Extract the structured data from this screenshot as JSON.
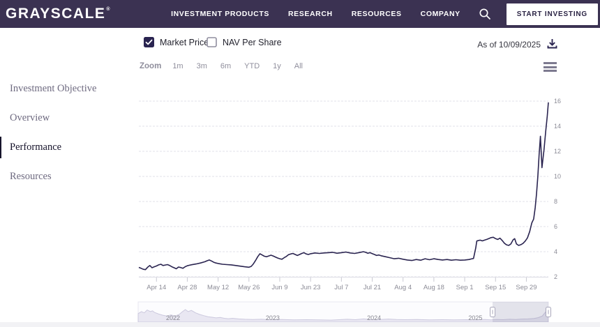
{
  "header": {
    "brand": "GRAYSCALE",
    "reg_mark": "®",
    "nav_items": [
      "INVESTMENT PRODUCTS",
      "RESEARCH",
      "RESOURCES",
      "COMPANY"
    ],
    "cta_label": "START INVESTING",
    "bg_color": "#3b3252"
  },
  "controls": {
    "market_price": {
      "label": "Market Price",
      "checked": true
    },
    "nav_per_share": {
      "label": "NAV Per Share",
      "checked": false
    },
    "as_of": "As of 10/09/2025"
  },
  "toolbar": {
    "zoom_label": "Zoom",
    "ranges": [
      "1m",
      "3m",
      "6m",
      "YTD",
      "1y",
      "All"
    ]
  },
  "sidebar": {
    "items": [
      {
        "label": "Investment Objective",
        "active": false
      },
      {
        "label": "Overview",
        "active": false
      },
      {
        "label": "Performance",
        "active": true
      },
      {
        "label": "Resources",
        "active": false
      }
    ]
  },
  "chart_data": {
    "type": "line",
    "title": "Market Price",
    "series_name": "Market Price",
    "line_color": "#2a2450",
    "grid_color": "#e2e1ea",
    "axis_text_color": "#8b8b96",
    "ylim": [
      2,
      16
    ],
    "y_ticks": [
      2,
      4,
      6,
      8,
      10,
      12,
      14,
      16
    ],
    "x_day_max": 186,
    "x_ticks": [
      {
        "label": "Apr 14",
        "day": 8
      },
      {
        "label": "Apr 28",
        "day": 22
      },
      {
        "label": "May 12",
        "day": 36
      },
      {
        "label": "May 26",
        "day": 50
      },
      {
        "label": "Jun 9",
        "day": 64
      },
      {
        "label": "Jun 23",
        "day": 78
      },
      {
        "label": "Jul 7",
        "day": 92
      },
      {
        "label": "Jul 21",
        "day": 106
      },
      {
        "label": "Aug 4",
        "day": 120
      },
      {
        "label": "Aug 18",
        "day": 134
      },
      {
        "label": "Sep 1",
        "day": 148
      },
      {
        "label": "Sep 15",
        "day": 162
      },
      {
        "label": "Sep 29",
        "day": 176
      }
    ],
    "points": [
      [
        0,
        2.75
      ],
      [
        1,
        2.68
      ],
      [
        2,
        2.6
      ],
      [
        3,
        2.57
      ],
      [
        4,
        2.76
      ],
      [
        5,
        2.9
      ],
      [
        6,
        2.72
      ],
      [
        7,
        2.8
      ],
      [
        8,
        2.86
      ],
      [
        9,
        2.95
      ],
      [
        10,
        3.0
      ],
      [
        11,
        2.9
      ],
      [
        12,
        2.94
      ],
      [
        13,
        2.97
      ],
      [
        14,
        2.9
      ],
      [
        15,
        2.8
      ],
      [
        16,
        2.72
      ],
      [
        17,
        2.64
      ],
      [
        18,
        2.78
      ],
      [
        19,
        2.74
      ],
      [
        20,
        2.68
      ],
      [
        21,
        2.8
      ],
      [
        22,
        2.88
      ],
      [
        23,
        2.92
      ],
      [
        24,
        2.96
      ],
      [
        26,
        3.02
      ],
      [
        28,
        3.1
      ],
      [
        30,
        3.2
      ],
      [
        31,
        3.28
      ],
      [
        32,
        3.34
      ],
      [
        33,
        3.26
      ],
      [
        34,
        3.16
      ],
      [
        35,
        3.1
      ],
      [
        36,
        3.06
      ],
      [
        38,
        3.0
      ],
      [
        40,
        2.97
      ],
      [
        42,
        2.95
      ],
      [
        44,
        2.9
      ],
      [
        46,
        2.85
      ],
      [
        48,
        2.8
      ],
      [
        50,
        2.76
      ],
      [
        51,
        2.83
      ],
      [
        52,
        3.02
      ],
      [
        53,
        3.3
      ],
      [
        54,
        3.6
      ],
      [
        55,
        3.84
      ],
      [
        56,
        3.74
      ],
      [
        57,
        3.64
      ],
      [
        58,
        3.6
      ],
      [
        59,
        3.66
      ],
      [
        60,
        3.72
      ],
      [
        61,
        3.66
      ],
      [
        62,
        3.58
      ],
      [
        63,
        3.5
      ],
      [
        64,
        3.44
      ],
      [
        65,
        3.4
      ],
      [
        66,
        3.52
      ],
      [
        67,
        3.62
      ],
      [
        68,
        3.76
      ],
      [
        69,
        3.82
      ],
      [
        70,
        3.86
      ],
      [
        71,
        3.78
      ],
      [
        72,
        3.7
      ],
      [
        73,
        3.78
      ],
      [
        74,
        3.86
      ],
      [
        75,
        3.92
      ],
      [
        76,
        3.82
      ],
      [
        77,
        3.78
      ],
      [
        78,
        3.84
      ],
      [
        80,
        3.9
      ],
      [
        82,
        3.86
      ],
      [
        84,
        3.9
      ],
      [
        86,
        3.92
      ],
      [
        88,
        3.95
      ],
      [
        90,
        3.88
      ],
      [
        92,
        3.92
      ],
      [
        94,
        3.97
      ],
      [
        96,
        3.9
      ],
      [
        98,
        3.86
      ],
      [
        100,
        3.93
      ],
      [
        102,
        4.0
      ],
      [
        103,
        3.95
      ],
      [
        104,
        3.88
      ],
      [
        105,
        3.92
      ],
      [
        106,
        3.85
      ],
      [
        107,
        3.78
      ],
      [
        108,
        3.7
      ],
      [
        109,
        3.74
      ],
      [
        110,
        3.68
      ],
      [
        112,
        3.6
      ],
      [
        114,
        3.52
      ],
      [
        116,
        3.44
      ],
      [
        118,
        3.48
      ],
      [
        120,
        3.4
      ],
      [
        122,
        3.34
      ],
      [
        124,
        3.3
      ],
      [
        126,
        3.38
      ],
      [
        128,
        3.32
      ],
      [
        130,
        3.44
      ],
      [
        132,
        3.36
      ],
      [
        134,
        3.44
      ],
      [
        136,
        3.38
      ],
      [
        138,
        3.34
      ],
      [
        140,
        3.38
      ],
      [
        142,
        3.32
      ],
      [
        144,
        3.36
      ],
      [
        146,
        3.32
      ],
      [
        148,
        3.34
      ],
      [
        150,
        3.38
      ],
      [
        151,
        3.42
      ],
      [
        152,
        3.46
      ],
      [
        153,
        4.3
      ],
      [
        153.5,
        4.85
      ],
      [
        154,
        4.88
      ],
      [
        155,
        4.92
      ],
      [
        156,
        4.86
      ],
      [
        157,
        4.92
      ],
      [
        158,
        4.98
      ],
      [
        159,
        5.05
      ],
      [
        160,
        5.12
      ],
      [
        161,
        5.15
      ],
      [
        162,
        5.04
      ],
      [
        163,
        4.98
      ],
      [
        164,
        5.08
      ],
      [
        165,
        4.9
      ],
      [
        166,
        4.68
      ],
      [
        167,
        4.55
      ],
      [
        168,
        4.5
      ],
      [
        169,
        4.62
      ],
      [
        170,
        4.95
      ],
      [
        170.7,
        5.04
      ],
      [
        171.5,
        4.62
      ],
      [
        172.5,
        4.5
      ],
      [
        173.5,
        4.56
      ],
      [
        174.5,
        4.66
      ],
      [
        175.5,
        4.85
      ],
      [
        176.5,
        5.1
      ],
      [
        177.5,
        5.6
      ],
      [
        178.5,
        6.3
      ],
      [
        179.3,
        6.6
      ],
      [
        180,
        7.5
      ],
      [
        180.6,
        8.6
      ],
      [
        181.2,
        10.0
      ],
      [
        181.8,
        11.7
      ],
      [
        182.4,
        13.2
      ],
      [
        183.1,
        10.7
      ],
      [
        184,
        12.1
      ],
      [
        184.8,
        13.6
      ],
      [
        185.5,
        14.8
      ],
      [
        186,
        15.9
      ]
    ],
    "navigator": {
      "area_fill": "#e9e7f2",
      "area_line": "#ccc9de",
      "year_labels": [
        {
          "label": "2022",
          "f": 0.085
        },
        {
          "label": "2023",
          "f": 0.328
        },
        {
          "label": "2024",
          "f": 0.575
        },
        {
          "label": "2025",
          "f": 0.822
        }
      ],
      "selection": {
        "from": 0.864,
        "to": 1.0
      },
      "points": [
        [
          0,
          0.42
        ],
        [
          0.008,
          0.52
        ],
        [
          0.015,
          0.46
        ],
        [
          0.022,
          0.6
        ],
        [
          0.03,
          0.52
        ],
        [
          0.035,
          0.56
        ],
        [
          0.04,
          0.48
        ],
        [
          0.05,
          0.4
        ],
        [
          0.06,
          0.34
        ],
        [
          0.07,
          0.3
        ],
        [
          0.08,
          0.36
        ],
        [
          0.09,
          0.3
        ],
        [
          0.1,
          0.38
        ],
        [
          0.107,
          0.5
        ],
        [
          0.115,
          0.62
        ],
        [
          0.122,
          0.52
        ],
        [
          0.13,
          0.58
        ],
        [
          0.14,
          0.46
        ],
        [
          0.15,
          0.38
        ],
        [
          0.16,
          0.32
        ],
        [
          0.17,
          0.27
        ],
        [
          0.18,
          0.24
        ],
        [
          0.19,
          0.21
        ],
        [
          0.2,
          0.23
        ],
        [
          0.21,
          0.19
        ],
        [
          0.22,
          0.17
        ],
        [
          0.23,
          0.19
        ],
        [
          0.245,
          0.16
        ],
        [
          0.26,
          0.14
        ],
        [
          0.28,
          0.13
        ],
        [
          0.3,
          0.14
        ],
        [
          0.32,
          0.12
        ],
        [
          0.35,
          0.13
        ],
        [
          0.38,
          0.11
        ],
        [
          0.41,
          0.12
        ],
        [
          0.44,
          0.11
        ],
        [
          0.47,
          0.1
        ],
        [
          0.49,
          0.12
        ],
        [
          0.51,
          0.14
        ],
        [
          0.53,
          0.12
        ],
        [
          0.55,
          0.16
        ],
        [
          0.57,
          0.12
        ],
        [
          0.59,
          0.13
        ],
        [
          0.61,
          0.15
        ],
        [
          0.63,
          0.13
        ],
        [
          0.65,
          0.12
        ],
        [
          0.68,
          0.13
        ],
        [
          0.71,
          0.11
        ],
        [
          0.74,
          0.12
        ],
        [
          0.77,
          0.11
        ],
        [
          0.8,
          0.12
        ],
        [
          0.82,
          0.11
        ],
        [
          0.845,
          0.13
        ],
        [
          0.86,
          0.11
        ],
        [
          0.875,
          0.13
        ],
        [
          0.89,
          0.12
        ],
        [
          0.905,
          0.14
        ],
        [
          0.92,
          0.13
        ],
        [
          0.935,
          0.15
        ],
        [
          0.95,
          0.16
        ],
        [
          0.965,
          0.18
        ],
        [
          0.975,
          0.22
        ],
        [
          0.985,
          0.3
        ],
        [
          0.993,
          0.5
        ],
        [
          1,
          0.55
        ]
      ]
    }
  }
}
